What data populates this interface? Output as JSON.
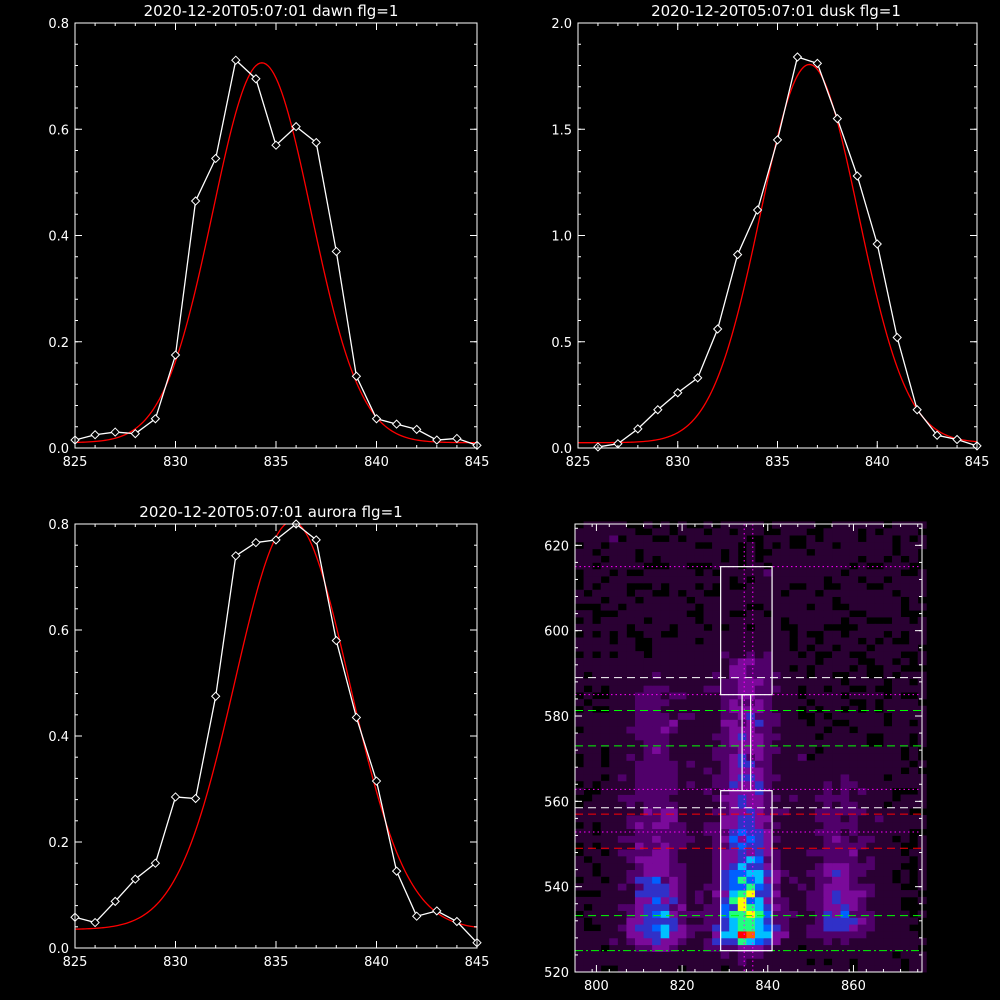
{
  "chart_data": [
    {
      "type": "line",
      "title": "2020-12-20T05:07:01 dawn flg=1",
      "xlim": [
        825,
        845
      ],
      "ylim": [
        0,
        0.8
      ],
      "xticks": [
        "825",
        "830",
        "835",
        "840",
        "845"
      ],
      "yticks": [
        "0.0",
        "0.2",
        "0.4",
        "0.6",
        "0.8"
      ],
      "xticks_v": [
        825,
        830,
        835,
        840,
        845
      ],
      "yticks_v": [
        0,
        0.2,
        0.4,
        0.6,
        0.8
      ],
      "observed": {
        "color": "#ffffff",
        "marker": "diamond",
        "x": [
          825,
          826,
          827,
          828,
          829,
          830,
          831,
          832,
          833,
          834,
          835,
          836,
          837,
          838,
          839,
          840,
          841,
          842,
          843,
          844,
          845
        ],
        "y": [
          0.015,
          0.025,
          0.03,
          0.027,
          0.055,
          0.175,
          0.465,
          0.545,
          0.73,
          0.695,
          0.57,
          0.605,
          0.575,
          0.37,
          0.135,
          0.055,
          0.045,
          0.035,
          0.015,
          0.018,
          0.005
        ]
      },
      "fit": {
        "color": "#ff0000",
        "type": "gaussian",
        "center": 834.3,
        "amplitude": 0.715,
        "sigma": 2.45,
        "offset": 0.01
      }
    },
    {
      "type": "line",
      "title": "2020-12-20T05:07:01 dusk flg=1",
      "xlim": [
        825,
        845
      ],
      "ylim": [
        0,
        2.0
      ],
      "xticks": [
        "825",
        "830",
        "835",
        "840",
        "845"
      ],
      "yticks": [
        "0.0",
        "0.5",
        "1.0",
        "1.5",
        "2.0"
      ],
      "xticks_v": [
        825,
        830,
        835,
        840,
        845
      ],
      "yticks_v": [
        0,
        0.5,
        1.0,
        1.5,
        2.0
      ],
      "observed": {
        "color": "#ffffff",
        "marker": "diamond",
        "x": [
          826,
          827,
          828,
          829,
          830,
          831,
          832,
          833,
          834,
          835,
          836,
          837,
          838,
          839,
          840,
          841,
          842,
          843,
          844,
          845
        ],
        "y": [
          0.005,
          0.02,
          0.09,
          0.18,
          0.26,
          0.33,
          0.56,
          0.91,
          1.12,
          1.45,
          1.84,
          1.81,
          1.55,
          1.28,
          0.96,
          0.52,
          0.18,
          0.06,
          0.04,
          0.01
        ]
      },
      "fit": {
        "color": "#ff0000",
        "type": "gaussian",
        "center": 836.6,
        "amplitude": 1.78,
        "sigma": 2.45,
        "offset": 0.025
      }
    },
    {
      "type": "line",
      "title": "2020-12-20T05:07:01 aurora flg=1",
      "xlim": [
        825,
        845
      ],
      "ylim": [
        0,
        0.8
      ],
      "xticks": [
        "825",
        "830",
        "835",
        "840",
        "845"
      ],
      "yticks": [
        "0.0",
        "0.2",
        "0.4",
        "0.6",
        "0.8"
      ],
      "xticks_v": [
        825,
        830,
        835,
        840,
        845
      ],
      "yticks_v": [
        0,
        0.2,
        0.4,
        0.6,
        0.8
      ],
      "observed": {
        "color": "#ffffff",
        "marker": "diamond",
        "x": [
          825,
          826,
          827,
          828,
          829,
          830,
          831,
          832,
          833,
          834,
          835,
          836,
          837,
          838,
          839,
          840,
          841,
          842,
          843,
          844,
          845
        ],
        "y": [
          0.058,
          0.048,
          0.088,
          0.13,
          0.16,
          0.285,
          0.282,
          0.475,
          0.74,
          0.765,
          0.77,
          0.8,
          0.77,
          0.58,
          0.435,
          0.315,
          0.145,
          0.06,
          0.07,
          0.05,
          0.01
        ]
      },
      "fit": {
        "color": "#ff0000",
        "type": "gaussian",
        "center": 835.8,
        "amplitude": 0.77,
        "sigma": 2.85,
        "offset": 0.035
      }
    },
    {
      "type": "heatmap",
      "title": "",
      "xlim": [
        795,
        876
      ],
      "ylim": [
        520,
        625
      ],
      "xticks": [
        "800",
        "820",
        "840",
        "860"
      ],
      "yticks": [
        "520",
        "540",
        "560",
        "580",
        "600",
        "620"
      ],
      "xticks_v": [
        800,
        820,
        840,
        860
      ],
      "yticks_v": [
        520,
        540,
        560,
        580,
        600,
        620
      ],
      "colormap": [
        "#000000",
        "#2a0033",
        "#50006a",
        "#7a0a9a",
        "#3030c8",
        "#0060ff",
        "#00c0ff",
        "#20ff80",
        "#ffff00",
        "#ff6000",
        "#ff0000"
      ],
      "emission_columns": [
        {
          "center_x": 814,
          "width": 4.5,
          "top_y": 586,
          "peak_y": 530,
          "peak": 0.55
        },
        {
          "center_x": 835,
          "width": 4.5,
          "top_y": 592,
          "peak_y": 530,
          "peak": 1.0
        },
        {
          "center_x": 857,
          "width": 4.5,
          "top_y": 565,
          "peak_y": 532,
          "peak": 0.4
        }
      ],
      "boxes": [
        {
          "color": "#ffffff",
          "x": [
            829,
            841
          ],
          "y": [
            585,
            615
          ]
        },
        {
          "color": "#ffffff",
          "x": [
            834,
            836
          ],
          "y": [
            562.5,
            585
          ]
        },
        {
          "color": "#ffffff",
          "x": [
            829,
            841
          ],
          "y": [
            525,
            562.5
          ]
        }
      ],
      "hlines": [
        {
          "y": 615,
          "color": "#ff00ff",
          "style": "dotted"
        },
        {
          "y": 589,
          "color": "#ffffff",
          "style": "dashed"
        },
        {
          "y": 585,
          "color": "#ff00ff",
          "style": "dotted"
        },
        {
          "y": 581.3,
          "color": "#00ff00",
          "style": "dashed"
        },
        {
          "y": 573,
          "color": "#00ff00",
          "style": "dashed"
        },
        {
          "y": 562.8,
          "color": "#ff00ff",
          "style": "dotted"
        },
        {
          "y": 558.5,
          "color": "#ffffff",
          "style": "dashed"
        },
        {
          "y": 557,
          "color": "#ff0000",
          "style": "dashed"
        },
        {
          "y": 552.8,
          "color": "#ff00ff",
          "style": "dotted"
        },
        {
          "y": 549,
          "color": "#ff0000",
          "style": "dashed"
        },
        {
          "y": 533.2,
          "color": "#00ff00",
          "style": "dashed"
        },
        {
          "y": 525,
          "color": "#00ff00",
          "style": "dashdot"
        }
      ],
      "vlines": [
        {
          "x": 834.5,
          "color": "#ff00ff",
          "style": "dotted"
        },
        {
          "x": 836.5,
          "color": "#ff00ff",
          "style": "dotted"
        }
      ]
    }
  ]
}
